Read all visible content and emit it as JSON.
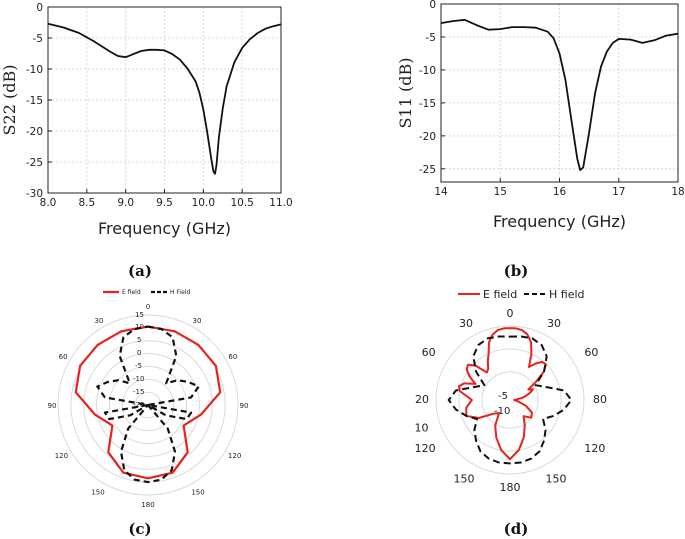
{
  "chart_data": [
    {
      "panel": "(a)",
      "type": "line",
      "xlabel": "Frequency (GHz)",
      "ylabel": "S22 (dB)",
      "xlim": [
        8.0,
        11.0
      ],
      "ylim": [
        -30,
        0
      ],
      "xticks": [
        "8.0",
        "8.5",
        "9.0",
        "9.5",
        "10.0",
        "10.5",
        "11.0"
      ],
      "yticks": [
        "0",
        "-5",
        "-10",
        "-15",
        "-20",
        "-25",
        "-30"
      ],
      "grid": true,
      "series": [
        {
          "color": "#111111",
          "x": [
            8.0,
            8.2,
            8.4,
            8.6,
            8.8,
            8.9,
            9.0,
            9.1,
            9.2,
            9.3,
            9.4,
            9.5,
            9.6,
            9.7,
            9.8,
            9.9,
            9.95,
            10.0,
            10.05,
            10.1,
            10.13,
            10.15,
            10.17,
            10.2,
            10.25,
            10.3,
            10.4,
            10.5,
            10.6,
            10.7,
            10.8,
            10.9,
            11.0
          ],
          "y": [
            -2.7,
            -3.3,
            -4.2,
            -5.6,
            -7.2,
            -7.9,
            -8.1,
            -7.6,
            -7.1,
            -6.9,
            -6.9,
            -7.0,
            -7.6,
            -8.5,
            -10.0,
            -12.0,
            -13.8,
            -16.5,
            -20.2,
            -24.3,
            -26.5,
            -26.9,
            -25.5,
            -21.0,
            -16.3,
            -12.8,
            -8.9,
            -6.6,
            -5.2,
            -4.2,
            -3.5,
            -3.1,
            -2.8
          ]
        }
      ]
    },
    {
      "panel": "(b)",
      "type": "line",
      "xlabel": "Frequency (GHz)",
      "ylabel": "S11 (dB)",
      "xlim": [
        14,
        18
      ],
      "ylim": [
        -27,
        0
      ],
      "xticks": [
        "14",
        "15",
        "16",
        "17",
        "18"
      ],
      "yticks": [
        "0",
        "-5",
        "-10",
        "-15",
        "-20",
        "-25"
      ],
      "grid": true,
      "series": [
        {
          "color": "#111111",
          "x": [
            14.0,
            14.2,
            14.4,
            14.6,
            14.8,
            15.0,
            15.2,
            15.4,
            15.6,
            15.8,
            15.9,
            16.0,
            16.1,
            16.2,
            16.3,
            16.35,
            16.4,
            16.5,
            16.6,
            16.7,
            16.8,
            16.9,
            17.0,
            17.2,
            17.4,
            17.6,
            17.8,
            18.0
          ],
          "y": [
            -2.9,
            -2.6,
            -2.4,
            -3.2,
            -3.9,
            -3.8,
            -3.5,
            -3.5,
            -3.6,
            -4.2,
            -5.2,
            -7.5,
            -11.5,
            -17.5,
            -23.5,
            -25.2,
            -24.8,
            -19.5,
            -13.5,
            -9.5,
            -7.2,
            -5.9,
            -5.3,
            -5.4,
            -5.9,
            -5.5,
            -4.8,
            -4.5
          ]
        }
      ]
    },
    {
      "panel": "(c)",
      "type": "polar",
      "legend": [
        "E field",
        "H Field"
      ],
      "rlim": [
        -20,
        15
      ],
      "rticks": [
        "15",
        "10",
        "5",
        "0",
        "-5",
        "-10",
        "-15",
        "-20"
      ],
      "angle_labels": [
        "0",
        "30",
        "60",
        "90",
        "120",
        "150",
        "180",
        "150",
        "120",
        "90",
        "60",
        "30"
      ],
      "series": [
        {
          "name": "E field",
          "color": "#e8231e",
          "dash": "solid",
          "theta_deg": [
            0,
            20,
            40,
            60,
            80,
            100,
            120,
            140,
            160,
            180,
            200,
            220,
            240,
            260,
            280,
            300,
            320,
            340,
            360
          ],
          "r": [
            10.5,
            10.5,
            10.5,
            10.5,
            8.5,
            1.0,
            -4.0,
            4.0,
            8.0,
            8.5,
            8.0,
            4.0,
            -4.0,
            1.0,
            8.5,
            10.5,
            10.5,
            10.5,
            10.5
          ]
        },
        {
          "name": "H Field",
          "color": "#111111",
          "dash": "dashed",
          "theta_deg": [
            0,
            10,
            20,
            30,
            40,
            50,
            60,
            70,
            80,
            90,
            100,
            110,
            120,
            130,
            140,
            150,
            160,
            170,
            180,
            190,
            200,
            210,
            220,
            230,
            240,
            250,
            260,
            270,
            280,
            290,
            300,
            310,
            320,
            330,
            340,
            350,
            360
          ],
          "r": [
            10.5,
            10.0,
            8.0,
            2.0,
            -9.0,
            -5.0,
            -2.0,
            1.0,
            -3.0,
            -20.0,
            -3.0,
            -4.0,
            -12.0,
            -20.0,
            -8.0,
            1.0,
            7.0,
            9.5,
            10.0,
            9.5,
            7.0,
            1.0,
            -8.0,
            -20.0,
            -12.0,
            -4.0,
            -3.0,
            -20.0,
            -3.0,
            1.0,
            -2.0,
            -5.0,
            -9.0,
            2.0,
            8.0,
            10.0,
            10.5
          ]
        }
      ]
    },
    {
      "panel": "(d)",
      "type": "polar",
      "legend": [
        "E field",
        "H field"
      ],
      "rlim": [
        -20,
        15
      ],
      "rticks": [
        "-5",
        "-10"
      ],
      "angle_labels": [
        "0",
        "30",
        "60",
        "80",
        "120",
        "150",
        "180",
        "150",
        "120",
        "10",
        "20",
        "60",
        "30"
      ],
      "series": [
        {
          "name": "E field",
          "color": "#e8231e",
          "dash": "solid",
          "theta_deg": [
            0,
            5,
            10,
            15,
            20,
            25,
            30,
            35,
            40,
            45,
            50,
            55,
            60,
            65,
            70,
            75,
            80,
            90,
            100,
            110,
            120,
            130,
            140,
            150,
            160,
            170,
            180,
            190,
            200,
            210,
            220,
            230,
            240,
            250,
            260,
            270,
            280,
            285,
            290,
            295,
            300,
            305,
            310,
            315,
            320,
            325,
            330,
            335,
            340,
            345,
            350,
            355,
            360
          ],
          "r": [
            14.0,
            14.0,
            13.5,
            12.0,
            9.0,
            4.0,
            -2.0,
            1.0,
            3.5,
            4.0,
            1.0,
            -5.0,
            -10.0,
            -8.0,
            -10.0,
            -12.0,
            -14.0,
            -18.0,
            -16.0,
            -12.0,
            -8.0,
            -7.0,
            -10.0,
            -6.0,
            -1.0,
            4.0,
            8.0,
            4.0,
            -1.0,
            -6.0,
            -12.0,
            -10.0,
            -3.0,
            2.0,
            1.0,
            -2.0,
            4.0,
            5.0,
            3.0,
            -2.0,
            2.0,
            5.0,
            6.0,
            3.0,
            -3.0,
            -2.0,
            1.0,
            4.0,
            9.0,
            12.0,
            13.5,
            14.0,
            14.0
          ]
        },
        {
          "name": "H field",
          "color": "#111111",
          "dash": "dashed",
          "theta_deg": [
            0,
            10,
            20,
            30,
            40,
            50,
            60,
            70,
            80,
            90,
            100,
            110,
            120,
            130,
            140,
            150,
            160,
            170,
            180,
            190,
            200,
            210,
            220,
            230,
            240,
            250,
            260,
            270,
            280,
            290,
            300,
            310,
            320,
            330,
            340,
            350,
            360
          ],
          "r": [
            10.0,
            10.5,
            11.0,
            10.0,
            7.0,
            1.0,
            -6.0,
            -2.0,
            6.0,
            9.0,
            6.0,
            2.0,
            -2.0,
            2.0,
            5.0,
            8.0,
            9.5,
            10.0,
            10.0,
            10.0,
            9.5,
            8.0,
            5.0,
            2.0,
            -2.0,
            2.0,
            6.0,
            9.0,
            6.0,
            -2.0,
            -6.0,
            1.0,
            7.0,
            10.0,
            11.0,
            10.5,
            10.0
          ]
        }
      ]
    }
  ],
  "labels": {
    "a": "(a)",
    "b": "(b)",
    "c": "(c)",
    "d": "(d)"
  },
  "colors": {
    "e_field": "#e8231e",
    "h_field": "#111111",
    "grid": "#cfcfcf"
  }
}
